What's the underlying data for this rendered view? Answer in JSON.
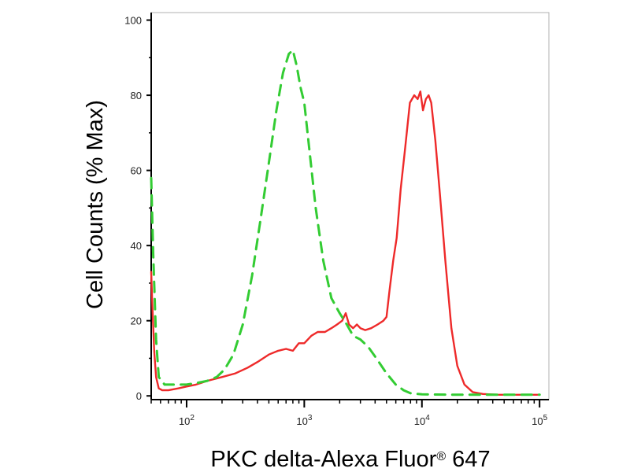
{
  "chart_data": {
    "type": "line",
    "title": "",
    "xlabel": "PKC delta-Alexa Fluor® 647",
    "ylabel": "Cell Counts (% Max)",
    "x_scale": "log",
    "xlim": [
      50,
      120000
    ],
    "ylim": [
      -1,
      102
    ],
    "grid": false,
    "legend": "none",
    "x_tick_labels": [
      {
        "base": "10",
        "exp": "2",
        "value": 100
      },
      {
        "base": "10",
        "exp": "3",
        "value": 1000
      },
      {
        "base": "10",
        "exp": "4",
        "value": 10000
      },
      {
        "base": "10",
        "exp": "5",
        "value": 100000
      }
    ],
    "y_ticks": [
      0,
      20,
      40,
      60,
      80,
      100
    ],
    "y_tick_labels": [
      "0",
      "20",
      "40",
      "60",
      "80",
      "100"
    ],
    "series": [
      {
        "color": "#ee2a2a",
        "style": "solid",
        "points": [
          [
            50,
            33
          ],
          [
            51,
            25
          ],
          [
            53,
            12
          ],
          [
            55,
            5
          ],
          [
            58,
            2
          ],
          [
            62,
            1.5
          ],
          [
            70,
            1.5
          ],
          [
            85,
            2
          ],
          [
            100,
            2.5
          ],
          [
            120,
            3
          ],
          [
            150,
            4
          ],
          [
            200,
            5
          ],
          [
            260,
            6
          ],
          [
            330,
            7.5
          ],
          [
            400,
            9
          ],
          [
            500,
            11
          ],
          [
            600,
            12
          ],
          [
            700,
            12.5
          ],
          [
            800,
            12
          ],
          [
            900,
            14
          ],
          [
            1000,
            14
          ],
          [
            1150,
            16
          ],
          [
            1300,
            17
          ],
          [
            1500,
            17
          ],
          [
            1700,
            18
          ],
          [
            1900,
            19
          ],
          [
            2100,
            20
          ],
          [
            2250,
            22
          ],
          [
            2400,
            19
          ],
          [
            2600,
            18
          ],
          [
            2800,
            19
          ],
          [
            3000,
            18
          ],
          [
            3300,
            17.5
          ],
          [
            3700,
            18
          ],
          [
            4200,
            19
          ],
          [
            4700,
            20
          ],
          [
            5000,
            21
          ],
          [
            5300,
            28
          ],
          [
            5700,
            36
          ],
          [
            6100,
            42
          ],
          [
            6600,
            55
          ],
          [
            7200,
            66
          ],
          [
            7900,
            78
          ],
          [
            8600,
            80
          ],
          [
            9200,
            79
          ],
          [
            9700,
            81
          ],
          [
            10200,
            76
          ],
          [
            10800,
            79
          ],
          [
            11400,
            80
          ],
          [
            12000,
            78
          ],
          [
            13000,
            68
          ],
          [
            14200,
            54
          ],
          [
            15800,
            36
          ],
          [
            17800,
            18
          ],
          [
            20000,
            8
          ],
          [
            23000,
            3
          ],
          [
            27000,
            1
          ],
          [
            33000,
            0.5
          ],
          [
            45000,
            0.3
          ],
          [
            100000,
            0.3
          ]
        ]
      },
      {
        "color": "#33cc33",
        "style": "dashed",
        "points": [
          [
            50,
            58
          ],
          [
            52,
            38
          ],
          [
            55,
            15
          ],
          [
            58,
            5
          ],
          [
            65,
            3
          ],
          [
            80,
            3
          ],
          [
            100,
            3
          ],
          [
            125,
            3.5
          ],
          [
            150,
            4
          ],
          [
            180,
            5
          ],
          [
            210,
            7
          ],
          [
            250,
            11
          ],
          [
            300,
            19
          ],
          [
            360,
            32
          ],
          [
            430,
            48
          ],
          [
            500,
            62
          ],
          [
            580,
            76
          ],
          [
            660,
            86
          ],
          [
            740,
            91
          ],
          [
            800,
            92
          ],
          [
            860,
            88
          ],
          [
            930,
            82
          ],
          [
            1000,
            78
          ],
          [
            1100,
            66
          ],
          [
            1250,
            50
          ],
          [
            1450,
            36
          ],
          [
            1700,
            26
          ],
          [
            2000,
            22
          ],
          [
            2300,
            19
          ],
          [
            2600,
            16
          ],
          [
            3000,
            15
          ],
          [
            3500,
            13
          ],
          [
            4100,
            10
          ],
          [
            5000,
            6
          ],
          [
            6000,
            3
          ],
          [
            7000,
            1.5
          ],
          [
            8000,
            0.7
          ],
          [
            10000,
            0.4
          ],
          [
            20000,
            0.3
          ],
          [
            100000,
            0.3
          ]
        ]
      }
    ]
  }
}
